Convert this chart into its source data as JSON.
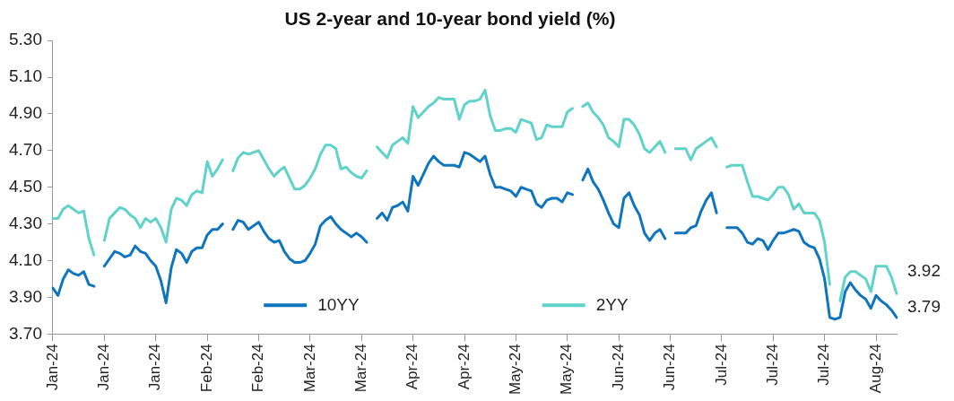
{
  "chart_data": {
    "type": "line",
    "title": "US 2-year and 10-year bond yield (%)",
    "categories": [
      "Jan-24",
      null,
      null,
      null,
      null,
      null,
      null,
      null,
      null,
      null,
      "Jan-24",
      null,
      null,
      null,
      null,
      null,
      null,
      null,
      null,
      null,
      "Jan-24",
      null,
      null,
      null,
      null,
      null,
      null,
      null,
      null,
      null,
      "Feb-24",
      null,
      null,
      null,
      null,
      null,
      null,
      null,
      null,
      null,
      "Feb-24",
      null,
      null,
      null,
      null,
      null,
      null,
      null,
      null,
      null,
      "Mar-24",
      null,
      null,
      null,
      null,
      null,
      null,
      null,
      null,
      null,
      "Mar-24",
      null,
      null,
      null,
      null,
      null,
      null,
      null,
      null,
      null,
      "Apr-24",
      null,
      null,
      null,
      null,
      null,
      null,
      null,
      null,
      null,
      "Apr-24",
      null,
      null,
      null,
      null,
      null,
      null,
      null,
      null,
      null,
      "May-24",
      null,
      null,
      null,
      null,
      null,
      null,
      null,
      null,
      null,
      "May-24",
      null,
      null,
      null,
      null,
      null,
      null,
      null,
      null,
      null,
      "Jun-24",
      null,
      null,
      null,
      null,
      null,
      null,
      null,
      null,
      null,
      "Jun-24",
      null,
      null,
      null,
      null,
      null,
      null,
      null,
      null,
      null,
      "Jul-24",
      null,
      null,
      null,
      null,
      null,
      null,
      null,
      null,
      null,
      "Jul-24",
      null,
      null,
      null,
      null,
      null,
      null,
      null,
      null,
      null,
      "Jul-24",
      null,
      null,
      null,
      null,
      null,
      null,
      null,
      null,
      null,
      "Aug-24",
      null,
      null,
      null,
      null
    ],
    "series": [
      {
        "name": "10YY",
        "color": "#0f75bf",
        "values": [
          3.95,
          3.91,
          4.0,
          4.05,
          4.03,
          4.02,
          4.04,
          3.97,
          3.96,
          null,
          4.07,
          4.11,
          4.15,
          4.14,
          4.12,
          4.13,
          4.18,
          4.15,
          4.14,
          4.1,
          4.07,
          3.99,
          3.87,
          4.06,
          4.16,
          4.14,
          4.09,
          4.15,
          4.17,
          4.17,
          4.24,
          4.27,
          4.27,
          4.3,
          null,
          4.27,
          4.32,
          4.31,
          4.27,
          4.29,
          4.31,
          4.26,
          4.22,
          4.2,
          4.21,
          4.15,
          4.11,
          4.09,
          4.09,
          4.1,
          4.14,
          4.19,
          4.29,
          4.32,
          4.34,
          4.3,
          4.27,
          4.25,
          4.23,
          4.25,
          4.23,
          4.2,
          null,
          4.33,
          4.36,
          4.32,
          4.39,
          4.4,
          4.42,
          4.37,
          4.56,
          4.51,
          4.57,
          4.63,
          4.67,
          4.64,
          4.62,
          4.62,
          4.62,
          4.61,
          4.69,
          4.68,
          4.66,
          4.64,
          4.67,
          4.57,
          4.5,
          4.5,
          4.49,
          4.48,
          4.45,
          4.5,
          4.49,
          4.48,
          4.41,
          4.39,
          4.43,
          4.44,
          4.44,
          4.42,
          4.47,
          4.46,
          null,
          4.54,
          4.6,
          4.53,
          4.49,
          4.43,
          4.36,
          4.3,
          4.28,
          4.44,
          4.47,
          4.4,
          4.35,
          4.25,
          4.21,
          4.25,
          4.27,
          4.22,
          null,
          4.25,
          4.25,
          4.25,
          4.28,
          4.29,
          4.37,
          4.43,
          4.47,
          4.36,
          null,
          4.28,
          4.28,
          4.28,
          4.25,
          4.2,
          4.19,
          4.22,
          4.21,
          4.16,
          4.21,
          4.25,
          4.25,
          4.26,
          4.27,
          4.26,
          4.2,
          4.18,
          4.17,
          4.11,
          4.0,
          3.79,
          3.78,
          3.79,
          3.93,
          3.98,
          3.94,
          3.91,
          3.89,
          3.84,
          3.91,
          3.88,
          3.86,
          3.83,
          3.79
        ]
      },
      {
        "name": "2YY",
        "color": "#5fd3c9",
        "values": [
          4.33,
          4.33,
          4.38,
          4.4,
          4.38,
          4.36,
          4.37,
          4.22,
          4.13,
          null,
          4.21,
          4.33,
          4.36,
          4.39,
          4.38,
          4.35,
          4.33,
          4.28,
          4.33,
          4.31,
          4.33,
          4.28,
          4.2,
          4.38,
          4.44,
          4.43,
          4.4,
          4.46,
          4.48,
          4.47,
          4.64,
          4.56,
          4.6,
          4.65,
          null,
          4.59,
          4.66,
          4.69,
          4.68,
          4.69,
          4.7,
          4.65,
          4.6,
          4.56,
          4.59,
          4.61,
          4.55,
          4.49,
          4.49,
          4.51,
          4.55,
          4.6,
          4.68,
          4.73,
          4.73,
          4.71,
          4.6,
          4.61,
          4.58,
          4.56,
          4.55,
          4.59,
          null,
          4.72,
          4.69,
          4.66,
          4.73,
          4.75,
          4.77,
          4.74,
          4.94,
          4.88,
          4.91,
          4.94,
          4.96,
          4.99,
          4.98,
          4.98,
          4.98,
          4.87,
          4.95,
          4.97,
          4.97,
          4.98,
          5.03,
          4.89,
          4.81,
          4.81,
          4.82,
          4.82,
          4.8,
          4.87,
          4.86,
          4.85,
          4.76,
          4.77,
          4.84,
          4.83,
          4.83,
          4.83,
          4.91,
          4.93,
          null,
          4.94,
          4.96,
          4.91,
          4.88,
          4.84,
          4.77,
          4.75,
          4.72,
          4.87,
          4.87,
          4.84,
          4.79,
          4.71,
          4.69,
          4.72,
          4.75,
          4.69,
          null,
          4.71,
          4.71,
          4.71,
          4.65,
          4.71,
          4.73,
          4.75,
          4.77,
          4.72,
          null,
          4.61,
          4.62,
          4.62,
          4.62,
          4.53,
          4.45,
          4.45,
          4.44,
          4.43,
          4.46,
          4.5,
          4.5,
          4.46,
          4.38,
          4.41,
          4.36,
          4.36,
          4.36,
          4.32,
          4.2,
          3.97,
          null,
          3.88,
          4.01,
          4.04,
          4.04,
          4.02,
          4.0,
          3.93,
          4.07,
          4.07,
          4.07,
          4.01,
          3.92
        ]
      }
    ],
    "ylim": [
      3.7,
      5.3
    ],
    "yticks": [
      {
        "value": 3.7,
        "label": "3.70"
      },
      {
        "value": 3.9,
        "label": "3.90"
      },
      {
        "value": 4.1,
        "label": "4.10"
      },
      {
        "value": 4.3,
        "label": "4.30"
      },
      {
        "value": 4.5,
        "label": "4.50"
      },
      {
        "value": 4.7,
        "label": "4.70"
      },
      {
        "value": 4.9,
        "label": "4.90"
      },
      {
        "value": 5.1,
        "label": "5.10"
      },
      {
        "value": 5.3,
        "label": "5.30"
      }
    ],
    "legend": "bottom",
    "annotations": [
      "3.92",
      "3.79"
    ]
  }
}
